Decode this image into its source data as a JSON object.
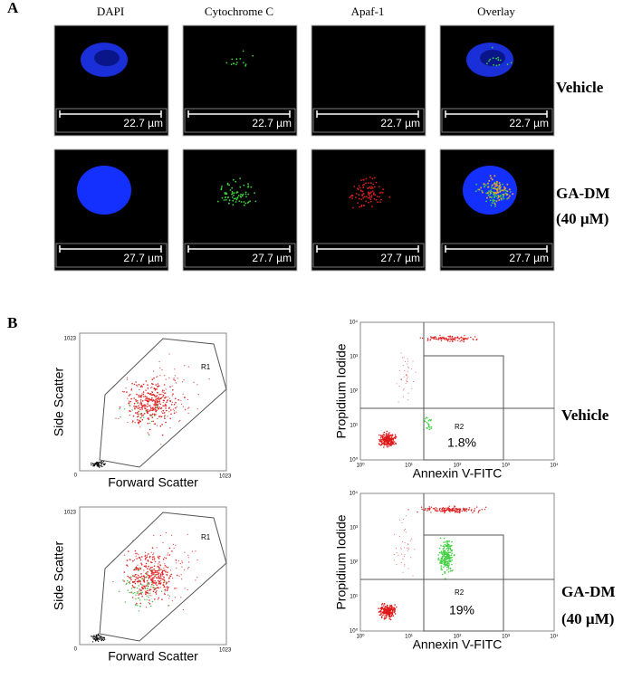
{
  "panel_a": {
    "label": "A",
    "columns": [
      "DAPI",
      "Cytochrome C",
      "Apaf-1",
      "Overlay"
    ],
    "rows": [
      {
        "label": [
          "Vehicle"
        ],
        "scale_bars": [
          "22.7 µm",
          "22.7 µm",
          "22.7 µm",
          "22.7 µm"
        ]
      },
      {
        "label": [
          "GA-DM",
          "(40 µM)"
        ],
        "scale_bars": [
          "27.7 µm",
          "27.7 µm",
          "27.7 µm",
          "27.7 µm"
        ]
      }
    ]
  },
  "panel_b": {
    "label": "B",
    "scatter_plot": {
      "x_label": "Forward Scatter",
      "y_label": "Side Scatter",
      "origin": "0",
      "max": "1023",
      "gate": "R1"
    },
    "annexin_plot": {
      "x_label": "Annexin V-FITC",
      "y_label": "Propidium Iodide",
      "gate": "R2",
      "ticks": [
        "10⁰",
        "10¹",
        "10²",
        "10³",
        "10⁴"
      ]
    },
    "rows": [
      {
        "label": [
          "Vehicle"
        ],
        "percent": "1.8%"
      },
      {
        "label": [
          "GA-DM",
          "(40 µM)"
        ],
        "percent": "19%"
      }
    ]
  }
}
